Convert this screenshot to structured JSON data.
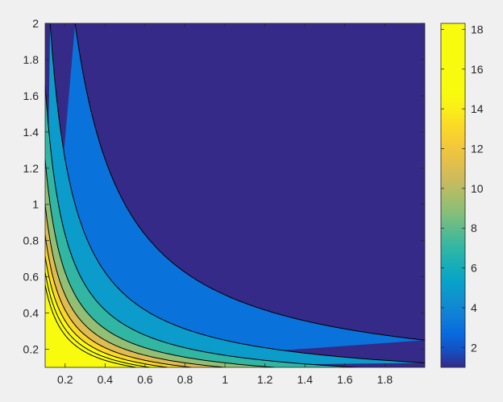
{
  "window": {
    "background": "#f0f0f0"
  },
  "chart_data": {
    "type": "contourf",
    "function": "z = 1/(x*y)",
    "xlim": [
      0.1,
      2.0
    ],
    "ylim": [
      0.1,
      2.0
    ],
    "x_ticks": [
      "0.2",
      "0.4",
      "0.6",
      "0.8",
      "1",
      "1.2",
      "1.4",
      "1.6",
      "1.8"
    ],
    "x_tick_values": [
      0.2,
      0.4,
      0.6,
      0.8,
      1.0,
      1.2,
      1.4,
      1.6,
      1.8
    ],
    "y_ticks": [
      "0.2",
      "0.4",
      "0.6",
      "0.8",
      "1",
      "1.2",
      "1.4",
      "1.6",
      "1.8",
      "2"
    ],
    "y_tick_values": [
      0.2,
      0.4,
      0.6,
      0.8,
      1.0,
      1.2,
      1.4,
      1.6,
      1.8,
      2.0
    ],
    "contour_levels": [
      2.0,
      4.0,
      6.0,
      8.0,
      10.0,
      12.0,
      14.0,
      16.0,
      18.0
    ],
    "zlim": [
      1.0,
      18.3
    ],
    "colormap": "parula",
    "line_color": "#000000",
    "grid": false,
    "colorbar": {
      "location": "right",
      "ticks": [
        "2",
        "4",
        "6",
        "8",
        "10",
        "12",
        "14",
        "16",
        "18"
      ],
      "tick_values": [
        2,
        4,
        6,
        8,
        10,
        12,
        14,
        16,
        18
      ]
    }
  }
}
